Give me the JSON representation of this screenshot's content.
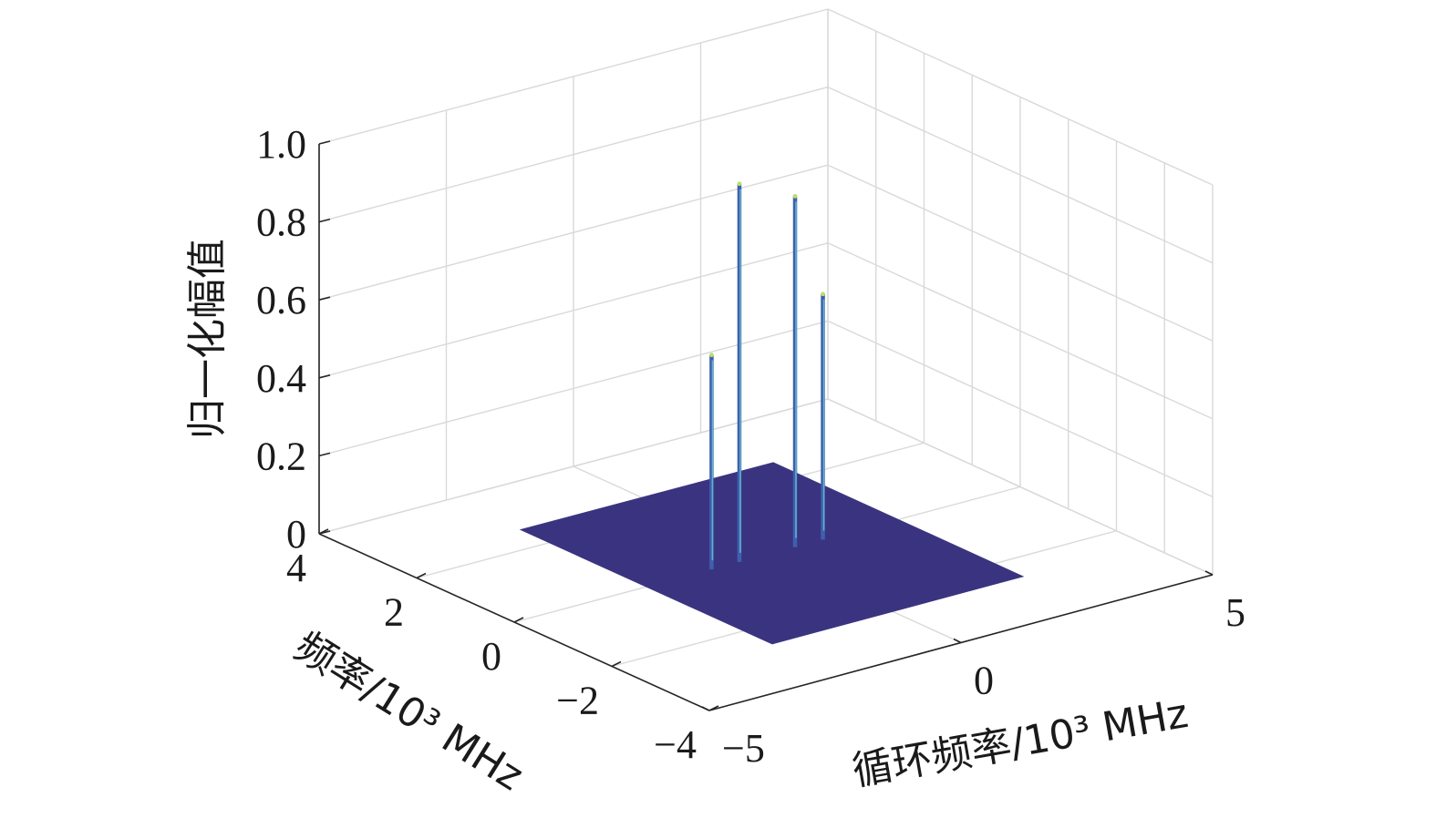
{
  "chart_data": {
    "type": "3d-surface",
    "zlabel": "归一化幅值",
    "ylabel": "频率/10³ MHz",
    "xlabel": "循环频率/10³ MHz",
    "z_ticks": [
      "0",
      "0.2",
      "0.4",
      "0.6",
      "0.8",
      "1.0"
    ],
    "y_ticks": [
      "4",
      "2",
      "0",
      "−2",
      "−4"
    ],
    "x_ticks": [
      "−5",
      "0",
      "5"
    ],
    "zlim": [
      0,
      1.0
    ],
    "ylim": [
      -4,
      4
    ],
    "xlim": [
      -5,
      5
    ],
    "grid": true,
    "surface_color": "#3a3480",
    "peaks": [
      {
        "x": -1.1,
        "y": 0.0,
        "z": 0.55
      },
      {
        "x": -0.55,
        "y": 0.0,
        "z": 0.97
      },
      {
        "x": 0.55,
        "y": 0.0,
        "z": 0.9
      },
      {
        "x": 1.1,
        "y": 0.0,
        "z": 0.63
      }
    ]
  }
}
